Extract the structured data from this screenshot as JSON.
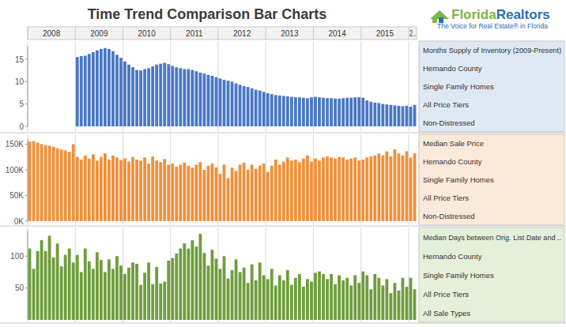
{
  "title": "Time Trend Comparison Bar Charts",
  "logo": {
    "parts": [
      "Florida",
      "Realtors"
    ],
    "tagline": "The Voice for Real Estate® in Florida"
  },
  "chart_data": [
    {
      "type": "bar",
      "title": "Months Supply of Inventory (2009-Present)",
      "annotations": [
        "Hernando County",
        "Single Family Homes",
        "All Price Tiers",
        "Non-Distressed"
      ],
      "categories": [
        "2008",
        null,
        null,
        null,
        null,
        null,
        null,
        null,
        null,
        null,
        null,
        null,
        "2009",
        null,
        null,
        null,
        null,
        null,
        null,
        null,
        null,
        null,
        null,
        null,
        "2010",
        null,
        null,
        null,
        null,
        null,
        null,
        null,
        null,
        null,
        null,
        null,
        "2011",
        null,
        null,
        null,
        null,
        null,
        null,
        null,
        null,
        null,
        null,
        null,
        "2012",
        null,
        null,
        null,
        null,
        null,
        null,
        null,
        null,
        null,
        null,
        null,
        "2013",
        null,
        null,
        null,
        null,
        null,
        null,
        null,
        null,
        null,
        null,
        null,
        "2014",
        null,
        null,
        null,
        null,
        null,
        null,
        null,
        null,
        null,
        null,
        null,
        "2015",
        null,
        null,
        null,
        null,
        null,
        null,
        null,
        null,
        null,
        null,
        null,
        "2..",
        null
      ],
      "values": [
        null,
        null,
        null,
        null,
        null,
        null,
        null,
        null,
        null,
        null,
        null,
        null,
        15.5,
        15.7,
        15.8,
        16.2,
        16.6,
        17.0,
        17.3,
        17.5,
        17.3,
        16.8,
        16.0,
        15.3,
        14.5,
        13.8,
        13.2,
        12.6,
        12.5,
        12.8,
        13.0,
        13.4,
        13.8,
        14.0,
        14.2,
        13.9,
        13.5,
        13.2,
        13.0,
        12.8,
        12.8,
        12.6,
        12.3,
        12.0,
        11.8,
        11.5,
        11.3,
        11.0,
        10.7,
        10.4,
        10.2,
        10.0,
        9.6,
        9.3,
        9.0,
        8.8,
        8.5,
        8.2,
        8.0,
        7.7,
        7.4,
        7.2,
        7.0,
        6.9,
        6.8,
        6.7,
        6.6,
        6.5,
        6.5,
        6.4,
        6.3,
        6.5,
        6.6,
        6.5,
        6.4,
        6.3,
        6.3,
        6.2,
        6.2,
        6.3,
        6.4,
        6.4,
        6.5,
        6.5,
        6.4,
        5.8,
        5.5,
        5.3,
        5.2,
        5.0,
        4.9,
        4.8,
        4.7,
        4.6,
        4.5,
        4.6,
        4.4,
        4.8
      ],
      "color": "#4a78c6",
      "ylim": [
        0,
        18
      ],
      "yticks": [
        0,
        5,
        10,
        15
      ],
      "grid": false
    },
    {
      "type": "bar",
      "title": "Median Sale Price",
      "annotations": [
        "Hernando County",
        "Single Family Homes",
        "All Price Tiers",
        "Non-Distressed"
      ],
      "categories": [
        "2008",
        null,
        null,
        null,
        null,
        null,
        null,
        null,
        null,
        null,
        null,
        null,
        "2009",
        null,
        null,
        null,
        null,
        null,
        null,
        null,
        null,
        null,
        null,
        null,
        "2010",
        null,
        null,
        null,
        null,
        null,
        null,
        null,
        null,
        null,
        null,
        null,
        "2011",
        null,
        null,
        null,
        null,
        null,
        null,
        null,
        null,
        null,
        null,
        null,
        "2012",
        null,
        null,
        null,
        null,
        null,
        null,
        null,
        null,
        null,
        null,
        null,
        "2013",
        null,
        null,
        null,
        null,
        null,
        null,
        null,
        null,
        null,
        null,
        null,
        "2014",
        null,
        null,
        null,
        null,
        null,
        null,
        null,
        null,
        null,
        null,
        null,
        "2015",
        null,
        null,
        null,
        null,
        null,
        null,
        null,
        null,
        null,
        null,
        null,
        "2..",
        null
      ],
      "values": [
        155000,
        156000,
        153000,
        150000,
        148000,
        147000,
        145000,
        142000,
        140000,
        138000,
        135000,
        150000,
        125000,
        120000,
        128000,
        122000,
        130000,
        118000,
        125000,
        132000,
        120000,
        128000,
        124000,
        119000,
        122000,
        116000,
        125000,
        120000,
        118000,
        124000,
        112000,
        126000,
        118000,
        115000,
        121000,
        110000,
        112000,
        106000,
        110000,
        114000,
        108000,
        104000,
        110000,
        115000,
        100000,
        108000,
        112000,
        105000,
        92000,
        110000,
        84000,
        104000,
        98000,
        110000,
        114000,
        100000,
        110000,
        102000,
        108000,
        112000,
        96000,
        108000,
        120000,
        110000,
        116000,
        124000,
        118000,
        120000,
        115000,
        122000,
        128000,
        116000,
        122000,
        118000,
        124000,
        126000,
        124000,
        122000,
        125000,
        124000,
        120000,
        122000,
        124000,
        118000,
        120000,
        124000,
        126000,
        128000,
        132000,
        128000,
        136000,
        126000,
        140000,
        132000,
        128000,
        136000,
        124000,
        132000
      ],
      "color": "#f0903a",
      "ylim": [
        0,
        160000
      ],
      "yticks": [
        {
          "value": 0,
          "label": "0K"
        },
        {
          "value": 50000,
          "label": "50K"
        },
        {
          "value": 100000,
          "label": "100K"
        },
        {
          "value": 150000,
          "label": "150K"
        }
      ],
      "grid": false
    },
    {
      "type": "bar",
      "title": "Median Days between Orig. List Date and ..",
      "annotations": [
        "Hernando County",
        "Single Family Homes",
        "All Price Tiers",
        "All Sale Types"
      ],
      "categories": [
        "2008",
        null,
        null,
        null,
        null,
        null,
        null,
        null,
        null,
        null,
        null,
        null,
        "2009",
        null,
        null,
        null,
        null,
        null,
        null,
        null,
        null,
        null,
        null,
        null,
        "2010",
        null,
        null,
        null,
        null,
        null,
        null,
        null,
        null,
        null,
        null,
        null,
        "2011",
        null,
        null,
        null,
        null,
        null,
        null,
        null,
        null,
        null,
        null,
        null,
        "2012",
        null,
        null,
        null,
        null,
        null,
        null,
        null,
        null,
        null,
        null,
        null,
        "2013",
        null,
        null,
        null,
        null,
        null,
        null,
        null,
        null,
        null,
        null,
        null,
        "2014",
        null,
        null,
        null,
        null,
        null,
        null,
        null,
        null,
        null,
        null,
        null,
        "2015",
        null,
        null,
        null,
        null,
        null,
        null,
        null,
        null,
        null,
        null,
        null,
        "2..",
        null
      ],
      "values": [
        112,
        80,
        108,
        125,
        108,
        132,
        98,
        120,
        84,
        102,
        112,
        90,
        102,
        75,
        112,
        92,
        80,
        106,
        94,
        75,
        95,
        80,
        100,
        85,
        72,
        82,
        90,
        88,
        55,
        74,
        90,
        56,
        83,
        57,
        60,
        93,
        97,
        104,
        112,
        120,
        112,
        125,
        115,
        135,
        105,
        85,
        110,
        96,
        80,
        100,
        65,
        78,
        95,
        75,
        82,
        58,
        87,
        62,
        90,
        70,
        64,
        80,
        54,
        70,
        62,
        78,
        55,
        66,
        72,
        52,
        64,
        60,
        74,
        76,
        72,
        64,
        72,
        56,
        70,
        62,
        66,
        54,
        70,
        58,
        76,
        70,
        48,
        72,
        66,
        54,
        64,
        42,
        58,
        46,
        66,
        52,
        66,
        48
      ],
      "color": "#6f9d3c",
      "ylim": [
        0,
        140
      ],
      "yticks": [
        50,
        100
      ],
      "grid": false
    }
  ]
}
